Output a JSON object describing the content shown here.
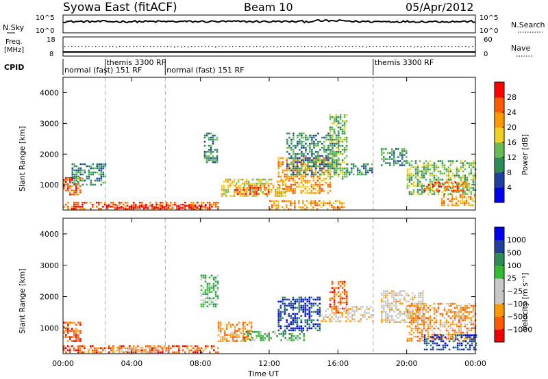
{
  "header": {
    "station": "Syowa East (fitACF)",
    "beam": "Beam 10",
    "date": "05/Apr/2012"
  },
  "noise_panel": {
    "left_label": "N.Sky",
    "right_label": "N.Search",
    "left_ticks": [
      "10^5",
      "10^0"
    ],
    "right_ticks": [
      "10^5",
      "10^0"
    ]
  },
  "freq_panel": {
    "left_label_line1": "Freq.",
    "left_label_line2": "[MHz]",
    "right_label": "Nave",
    "left_ticks": [
      "18",
      "8"
    ],
    "right_ticks": [
      "60",
      "0"
    ]
  },
  "cpid": {
    "label": "CPID",
    "segments": [
      {
        "text": "normal (fast) 151 RF",
        "start_hour": 0,
        "row": 2
      },
      {
        "text": "themis 3300 RF",
        "start_hour": 2.45,
        "row": 1
      },
      {
        "text": "normal (fast) 151 RF",
        "start_hour": 5.95,
        "row": 2
      },
      {
        "text": "themis 3300 RF",
        "start_hour": 18.05,
        "row": 1
      }
    ]
  },
  "xaxis": {
    "label": "Time UT",
    "ticks": [
      "00:00",
      "04:00",
      "08:00",
      "12:00",
      "16:00",
      "20:00",
      "00:00"
    ],
    "range_hours": [
      0,
      24
    ]
  },
  "mode_change_hours": [
    2.45,
    5.95,
    18.05
  ],
  "colors": {
    "power": [
      "#0000ee",
      "#2040a0",
      "#2e8b57",
      "#66bb55",
      "#f0d020",
      "#ff9900",
      "#ff5a00",
      "#ff0000"
    ],
    "velocity": [
      "#ee0000",
      "#ff5a00",
      "#ff9900",
      "#c8c8c8",
      "#c8c8c8",
      "#33bb33",
      "#2e8b57",
      "#2040a0",
      "#0000ee"
    ]
  },
  "chart_data": [
    {
      "type": "heatmap",
      "title": "",
      "xlabel": "Time UT",
      "ylabel": "Slant Range [km]",
      "xlim_hours": [
        0,
        24
      ],
      "ylim_km": [
        180,
        4500
      ],
      "yticks": [
        "4000",
        "3000",
        "2000",
        "1000"
      ],
      "colorbar": {
        "label": "Power [dB]",
        "ticks": [
          "28",
          "24",
          "20",
          "16",
          "12",
          "8",
          "4"
        ],
        "range": [
          0,
          32
        ]
      },
      "echo_regions": [
        {
          "t0": 0.0,
          "t1": 1.0,
          "r0": 700,
          "r1": 1250,
          "level": 6
        },
        {
          "t0": 0.0,
          "t1": 9.0,
          "r0": 200,
          "r1": 450,
          "level": 6
        },
        {
          "t0": 2.5,
          "t1": 8.5,
          "r0": 250,
          "r1": 350,
          "level": 7
        },
        {
          "t0": 0.5,
          "t1": 2.5,
          "r0": 1000,
          "r1": 1700,
          "level": 2
        },
        {
          "t0": 8.2,
          "t1": 9.0,
          "r0": 1700,
          "r1": 2700,
          "level": 2
        },
        {
          "t0": 9.2,
          "t1": 13.0,
          "r0": 600,
          "r1": 1200,
          "level": 4
        },
        {
          "t0": 10.0,
          "t1": 12.0,
          "r0": 700,
          "r1": 1000,
          "level": 6
        },
        {
          "t0": 12.5,
          "t1": 15.5,
          "r0": 700,
          "r1": 1900,
          "level": 5
        },
        {
          "t0": 13.0,
          "t1": 16.0,
          "r0": 1300,
          "r1": 2700,
          "level": 2
        },
        {
          "t0": 12.0,
          "t1": 16.5,
          "r0": 200,
          "r1": 500,
          "level": 5
        },
        {
          "t0": 15.5,
          "t1": 16.5,
          "r0": 1200,
          "r1": 3300,
          "level": 3
        },
        {
          "t0": 16.5,
          "t1": 18.0,
          "r0": 1300,
          "r1": 1700,
          "level": 2
        },
        {
          "t0": 18.5,
          "t1": 20.0,
          "r0": 1600,
          "r1": 2200,
          "level": 2
        },
        {
          "t0": 20.0,
          "t1": 24.0,
          "r0": 700,
          "r1": 1800,
          "level": 3
        },
        {
          "t0": 21.0,
          "t1": 23.5,
          "r0": 800,
          "r1": 1100,
          "level": 6
        },
        {
          "t0": 22.0,
          "t1": 24.0,
          "r0": 300,
          "r1": 700,
          "level": 5
        }
      ]
    },
    {
      "type": "heatmap",
      "title": "",
      "xlabel": "Time UT",
      "ylabel": "Slant Range [km]",
      "xlim_hours": [
        0,
        24
      ],
      "ylim_km": [
        180,
        4500
      ],
      "yticks": [
        "4000",
        "3000",
        "2000",
        "1000"
      ],
      "colorbar": {
        "label": "Velocity [m s⁻¹]",
        "ticks": [
          "1000",
          "500",
          "100",
          "25",
          "−25",
          "−100",
          "−500",
          "−1000"
        ],
        "range": [
          -1000,
          1000
        ]
      },
      "echo_regions": [
        {
          "t0": 0.0,
          "t1": 1.0,
          "r0": 600,
          "r1": 1200,
          "level": 1
        },
        {
          "t0": 0.0,
          "t1": 9.0,
          "r0": 200,
          "r1": 450,
          "level": 1
        },
        {
          "t0": 3.0,
          "t1": 6.0,
          "r0": 250,
          "r1": 400,
          "level": 3
        },
        {
          "t0": 8.0,
          "t1": 9.0,
          "r0": 1700,
          "r1": 2700,
          "level": 5
        },
        {
          "t0": 9.0,
          "t1": 11.0,
          "r0": 600,
          "r1": 1200,
          "level": 2
        },
        {
          "t0": 10.5,
          "t1": 14.0,
          "r0": 600,
          "r1": 900,
          "level": 5
        },
        {
          "t0": 12.5,
          "t1": 15.0,
          "r0": 900,
          "r1": 2000,
          "level": 7
        },
        {
          "t0": 15.0,
          "t1": 18.0,
          "r0": 1200,
          "r1": 1700,
          "level": 3
        },
        {
          "t0": 15.5,
          "t1": 16.5,
          "r0": 1500,
          "r1": 2500,
          "level": 1
        },
        {
          "t0": 18.5,
          "t1": 21.0,
          "r0": 1200,
          "r1": 2200,
          "level": 3
        },
        {
          "t0": 20.0,
          "t1": 24.0,
          "r0": 600,
          "r1": 1800,
          "level": 2
        },
        {
          "t0": 21.0,
          "t1": 24.0,
          "r0": 300,
          "r1": 800,
          "level": 7
        }
      ]
    }
  ]
}
